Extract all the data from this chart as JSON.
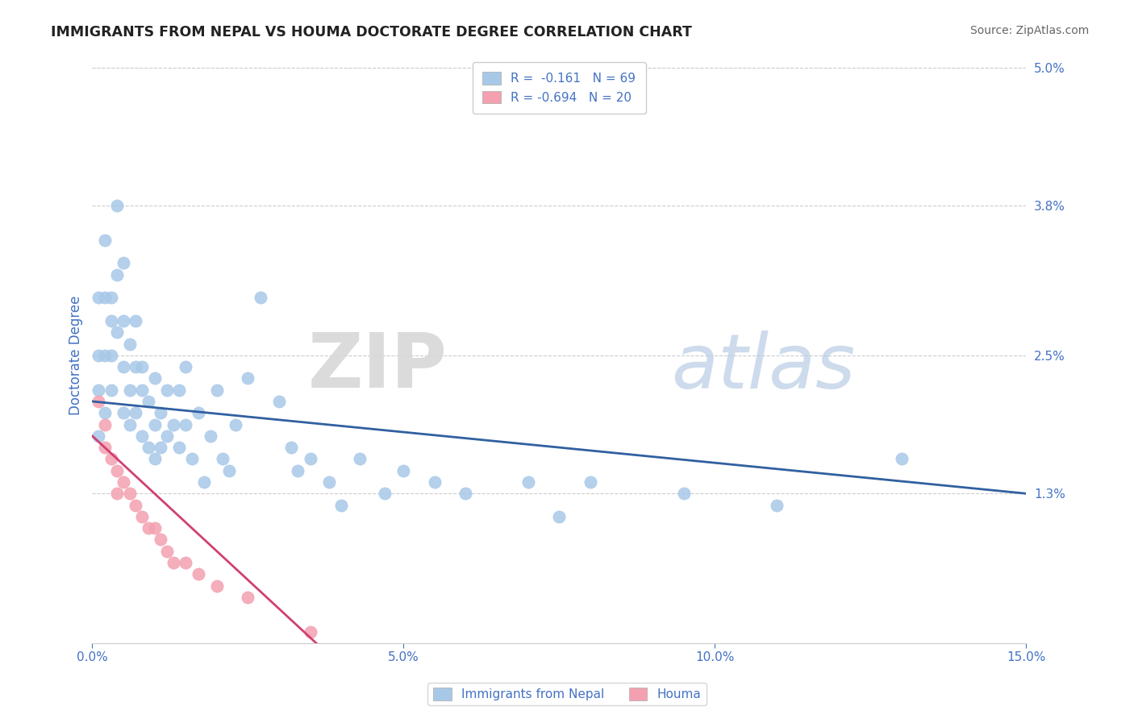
{
  "title": "IMMIGRANTS FROM NEPAL VS HOUMA DOCTORATE DEGREE CORRELATION CHART",
  "source_text": "Source: ZipAtlas.com",
  "ylabel": "Doctorate Degree",
  "xlim": [
    0,
    0.15
  ],
  "ylim": [
    0,
    0.05
  ],
  "blue_color": "#a8c8e8",
  "pink_color": "#f4a0b0",
  "blue_line_color": "#3060a0",
  "pink_line_color": "#d04070",
  "R_blue": -0.161,
  "N_blue": 69,
  "R_pink": -0.694,
  "N_pink": 20,
  "watermark_zip": "ZIP",
  "watermark_atlas": "atlas",
  "background_color": "#ffffff",
  "grid_color": "#cccccc",
  "title_color": "#222222",
  "label_color": "#4472c4",
  "tick_color": "#4472c4",
  "blue_x": [
    0.001,
    0.001,
    0.001,
    0.001,
    0.002,
    0.002,
    0.002,
    0.002,
    0.003,
    0.003,
    0.003,
    0.003,
    0.004,
    0.004,
    0.004,
    0.005,
    0.005,
    0.005,
    0.005,
    0.006,
    0.006,
    0.006,
    0.007,
    0.007,
    0.007,
    0.008,
    0.008,
    0.008,
    0.009,
    0.009,
    0.01,
    0.01,
    0.01,
    0.011,
    0.011,
    0.012,
    0.012,
    0.013,
    0.014,
    0.014,
    0.015,
    0.015,
    0.016,
    0.017,
    0.018,
    0.019,
    0.02,
    0.021,
    0.022,
    0.023,
    0.025,
    0.027,
    0.03,
    0.032,
    0.033,
    0.035,
    0.038,
    0.04,
    0.043,
    0.047,
    0.05,
    0.055,
    0.06,
    0.07,
    0.075,
    0.08,
    0.095,
    0.11,
    0.13
  ],
  "blue_y": [
    0.03,
    0.025,
    0.022,
    0.018,
    0.035,
    0.03,
    0.025,
    0.02,
    0.028,
    0.025,
    0.022,
    0.03,
    0.038,
    0.032,
    0.027,
    0.033,
    0.028,
    0.024,
    0.02,
    0.026,
    0.022,
    0.019,
    0.028,
    0.024,
    0.02,
    0.022,
    0.018,
    0.024,
    0.021,
    0.017,
    0.023,
    0.019,
    0.016,
    0.02,
    0.017,
    0.022,
    0.018,
    0.019,
    0.022,
    0.017,
    0.024,
    0.019,
    0.016,
    0.02,
    0.014,
    0.018,
    0.022,
    0.016,
    0.015,
    0.019,
    0.023,
    0.03,
    0.021,
    0.017,
    0.015,
    0.016,
    0.014,
    0.012,
    0.016,
    0.013,
    0.015,
    0.014,
    0.013,
    0.014,
    0.011,
    0.014,
    0.013,
    0.012,
    0.016
  ],
  "pink_x": [
    0.001,
    0.002,
    0.002,
    0.003,
    0.004,
    0.004,
    0.005,
    0.006,
    0.007,
    0.008,
    0.009,
    0.01,
    0.011,
    0.012,
    0.013,
    0.015,
    0.017,
    0.02,
    0.025,
    0.035
  ],
  "pink_y": [
    0.021,
    0.019,
    0.017,
    0.016,
    0.015,
    0.013,
    0.014,
    0.013,
    0.012,
    0.011,
    0.01,
    0.01,
    0.009,
    0.008,
    0.007,
    0.007,
    0.006,
    0.005,
    0.004,
    0.001
  ],
  "blue_line_x0": 0.0,
  "blue_line_x1": 0.15,
  "blue_line_y0": 0.021,
  "blue_line_y1": 0.013,
  "pink_line_x0": 0.0,
  "pink_line_x1": 0.036,
  "pink_line_y0": 0.018,
  "pink_line_y1": 0.0,
  "right_ytick_vals": [
    0.013,
    0.025,
    0.038,
    0.05
  ],
  "right_ytick_labels": [
    "1.3%",
    "2.5%",
    "3.8%",
    "5.0%"
  ],
  "xtick_vals": [
    0.0,
    0.05,
    0.1,
    0.15
  ],
  "xtick_labels": [
    "0.0%",
    "5.0%",
    "10.0%",
    "15.0%"
  ]
}
